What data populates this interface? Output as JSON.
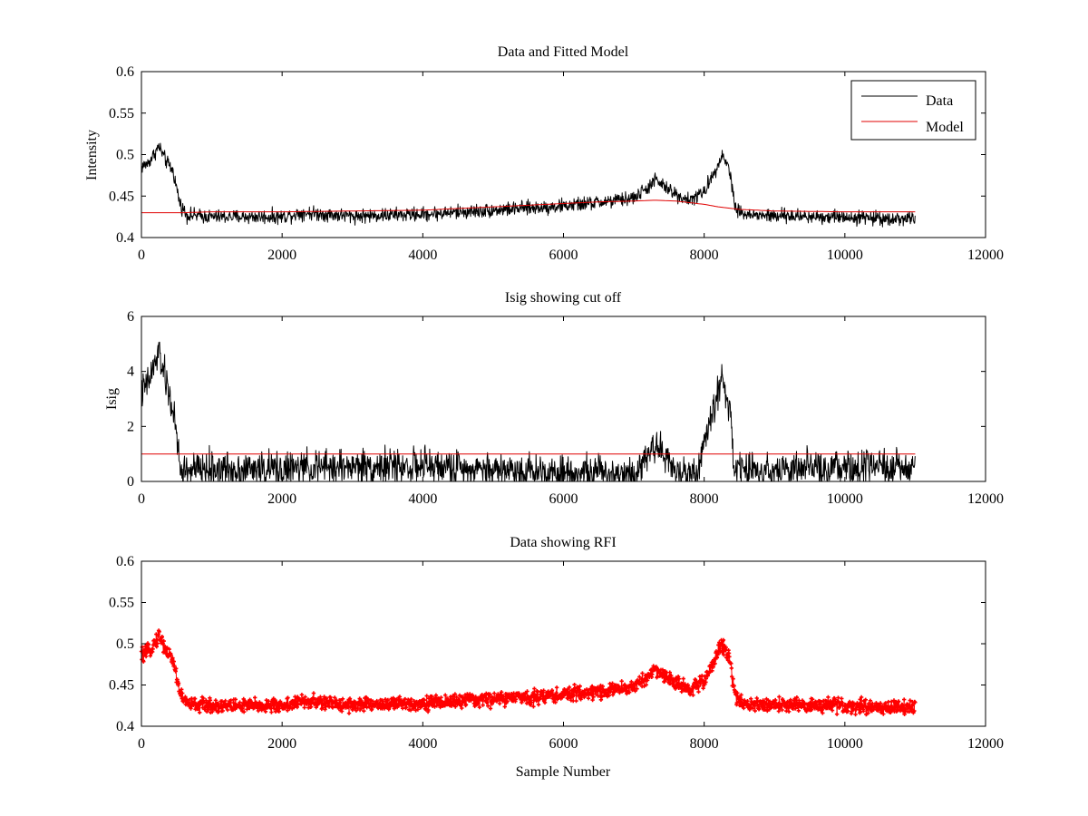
{
  "chart_data": [
    {
      "type": "line",
      "title": "Data and Fitted Model",
      "xlabel": "",
      "ylabel": "Intensity",
      "xlim": [
        0,
        12000
      ],
      "ylim": [
        0.4,
        0.6
      ],
      "xticks": [
        "0",
        "2000",
        "4000",
        "6000",
        "8000",
        "10000",
        "12000"
      ],
      "yticks": [
        "0.4",
        "0.45",
        "0.5",
        "0.55",
        "0.6"
      ],
      "grid": false,
      "legend": "top-right",
      "series": [
        {
          "name": "Data",
          "color": "#000000",
          "noise": 0.006,
          "x": [
            0,
            100,
            250,
            350,
            450,
            550,
            650,
            1000,
            2000,
            2300,
            3000,
            4000,
            5000,
            6000,
            6800,
            7000,
            7200,
            7300,
            7400,
            7600,
            7800,
            8000,
            8150,
            8250,
            8350,
            8450,
            8600,
            9000,
            10000,
            11000
          ],
          "y": [
            0.485,
            0.49,
            0.51,
            0.492,
            0.48,
            0.44,
            0.427,
            0.425,
            0.425,
            0.43,
            0.426,
            0.428,
            0.433,
            0.438,
            0.445,
            0.448,
            0.46,
            0.47,
            0.463,
            0.452,
            0.445,
            0.455,
            0.48,
            0.5,
            0.485,
            0.435,
            0.427,
            0.426,
            0.425,
            0.422
          ]
        },
        {
          "name": "Model",
          "color": "#e00000",
          "noise": 0,
          "x": [
            0,
            600,
            1000,
            2000,
            3000,
            4000,
            5000,
            6000,
            6500,
            7000,
            7300,
            7600,
            7800,
            8000,
            8200,
            8500,
            9000,
            10000,
            11000
          ],
          "y": [
            0.43,
            0.43,
            0.431,
            0.431,
            0.432,
            0.433,
            0.437,
            0.441,
            0.443,
            0.444,
            0.445,
            0.444,
            0.442,
            0.44,
            0.437,
            0.434,
            0.432,
            0.431,
            0.431
          ]
        }
      ]
    },
    {
      "type": "line",
      "title": "Isig showing cut off",
      "xlabel": "",
      "ylabel": "Isig",
      "xlim": [
        0,
        12000
      ],
      "ylim": [
        0,
        6
      ],
      "xticks": [
        "0",
        "2000",
        "4000",
        "6000",
        "8000",
        "10000",
        "12000"
      ],
      "yticks": [
        "0",
        "2",
        "4",
        "6"
      ],
      "grid": false,
      "series": [
        {
          "color": "#000000",
          "noise": 0.45,
          "floor": 0,
          "x": [
            0,
            100,
            250,
            350,
            450,
            560,
            600,
            1000,
            2000,
            2500,
            3000,
            4000,
            5000,
            6000,
            7000,
            7150,
            7300,
            7450,
            7600,
            7900,
            8050,
            8250,
            8380,
            8420,
            9000,
            10000,
            11000
          ],
          "y": [
            3.2,
            3.6,
            4.7,
            3.6,
            2.6,
            0.3,
            0.4,
            0.45,
            0.45,
            0.5,
            0.55,
            0.55,
            0.45,
            0.35,
            0.3,
            0.8,
            1.4,
            0.9,
            0.3,
            0.3,
            1.8,
            3.8,
            2.5,
            0.4,
            0.45,
            0.45,
            0.5
          ]
        },
        {
          "color": "#e00000",
          "noise": 0,
          "x": [
            0,
            11000
          ],
          "y": [
            1,
            1
          ]
        }
      ]
    },
    {
      "type": "scatter",
      "title": "Data showing RFI",
      "xlabel": "Sample Number",
      "ylabel": "",
      "xlim": [
        0,
        12000
      ],
      "ylim": [
        0.4,
        0.6
      ],
      "xticks": [
        "0",
        "2000",
        "4000",
        "6000",
        "8000",
        "10000",
        "12000"
      ],
      "yticks": [
        "0.4",
        "0.45",
        "0.5",
        "0.55",
        "0.6"
      ],
      "grid": false,
      "series": [
        {
          "color": "#ff0000",
          "noise": 0.006,
          "x": [
            0,
            100,
            250,
            350,
            450,
            550,
            650,
            1000,
            2000,
            2300,
            3000,
            4000,
            5000,
            6000,
            6800,
            7000,
            7200,
            7300,
            7400,
            7600,
            7800,
            8000,
            8150,
            8250,
            8350,
            8450,
            8600,
            9000,
            10000,
            11000
          ],
          "y": [
            0.485,
            0.49,
            0.51,
            0.492,
            0.48,
            0.44,
            0.427,
            0.425,
            0.425,
            0.43,
            0.426,
            0.428,
            0.433,
            0.438,
            0.445,
            0.448,
            0.46,
            0.47,
            0.463,
            0.452,
            0.445,
            0.455,
            0.48,
            0.5,
            0.485,
            0.435,
            0.427,
            0.426,
            0.425,
            0.422
          ]
        }
      ]
    }
  ]
}
